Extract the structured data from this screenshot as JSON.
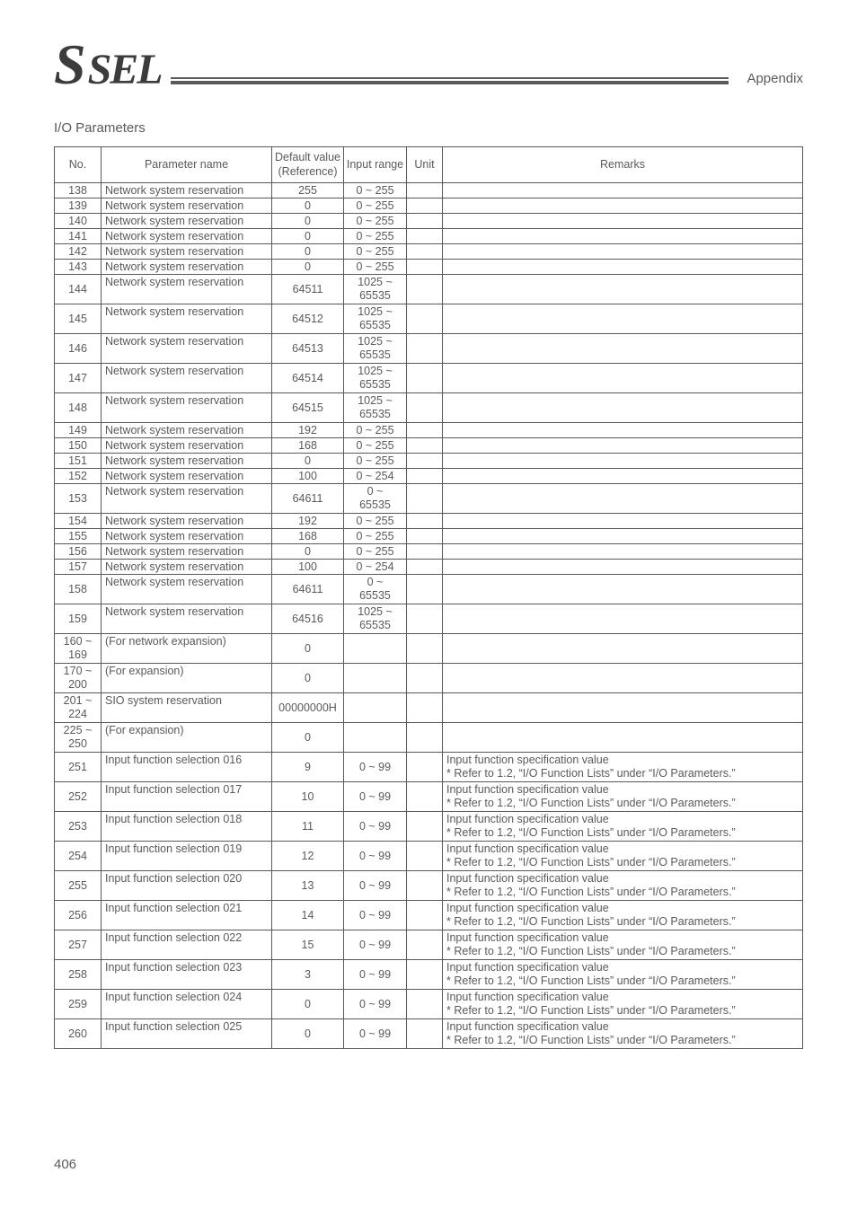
{
  "header": {
    "logo_s": "S",
    "logo_rest": "SEL",
    "appendix": "Appendix"
  },
  "section_title": "I/O Parameters",
  "columns": {
    "no": "No.",
    "name": "Parameter name",
    "def": "Default\nvalue\n(Reference)",
    "range": "Input\nrange",
    "unit": "Unit",
    "remarks": "Remarks"
  },
  "rows": [
    {
      "no": "138",
      "name": "Network system reservation",
      "def": "255",
      "range": "0 ~ 255",
      "unit": "",
      "remarks": ""
    },
    {
      "no": "139",
      "name": "Network system reservation",
      "def": "0",
      "range": "0 ~ 255",
      "unit": "",
      "remarks": ""
    },
    {
      "no": "140",
      "name": "Network system reservation",
      "def": "0",
      "range": "0 ~ 255",
      "unit": "",
      "remarks": ""
    },
    {
      "no": "141",
      "name": "Network system reservation",
      "def": "0",
      "range": "0 ~ 255",
      "unit": "",
      "remarks": ""
    },
    {
      "no": "142",
      "name": "Network system reservation",
      "def": "0",
      "range": "0 ~ 255",
      "unit": "",
      "remarks": ""
    },
    {
      "no": "143",
      "name": "Network system reservation",
      "def": "0",
      "range": "0 ~ 255",
      "unit": "",
      "remarks": ""
    },
    {
      "no": "144",
      "name": "Network system reservation",
      "def": "64511",
      "range": "1025 ~\n65535",
      "unit": "",
      "remarks": ""
    },
    {
      "no": "145",
      "name": "Network system reservation",
      "def": "64512",
      "range": "1025 ~\n65535",
      "unit": "",
      "remarks": ""
    },
    {
      "no": "146",
      "name": "Network system reservation",
      "def": "64513",
      "range": "1025 ~\n65535",
      "unit": "",
      "remarks": ""
    },
    {
      "no": "147",
      "name": "Network system reservation",
      "def": "64514",
      "range": "1025 ~\n65535",
      "unit": "",
      "remarks": ""
    },
    {
      "no": "148",
      "name": "Network system reservation",
      "def": "64515",
      "range": "1025 ~\n65535",
      "unit": "",
      "remarks": ""
    },
    {
      "no": "149",
      "name": "Network system reservation",
      "def": "192",
      "range": "0 ~ 255",
      "unit": "",
      "remarks": ""
    },
    {
      "no": "150",
      "name": "Network system reservation",
      "def": "168",
      "range": "0 ~ 255",
      "unit": "",
      "remarks": ""
    },
    {
      "no": "151",
      "name": "Network system reservation",
      "def": "0",
      "range": "0 ~ 255",
      "unit": "",
      "remarks": ""
    },
    {
      "no": "152",
      "name": "Network system reservation",
      "def": "100",
      "range": "0 ~ 254",
      "unit": "",
      "remarks": ""
    },
    {
      "no": "153",
      "name": "Network system reservation",
      "def": "64611",
      "range": "0 ~\n65535",
      "unit": "",
      "remarks": ""
    },
    {
      "no": "154",
      "name": "Network system reservation",
      "def": "192",
      "range": "0 ~ 255",
      "unit": "",
      "remarks": ""
    },
    {
      "no": "155",
      "name": "Network system reservation",
      "def": "168",
      "range": "0 ~ 255",
      "unit": "",
      "remarks": ""
    },
    {
      "no": "156",
      "name": "Network system reservation",
      "def": "0",
      "range": "0 ~ 255",
      "unit": "",
      "remarks": ""
    },
    {
      "no": "157",
      "name": "Network system reservation",
      "def": "100",
      "range": "0 ~ 254",
      "unit": "",
      "remarks": ""
    },
    {
      "no": "158",
      "name": "Network system reservation",
      "def": "64611",
      "range": "0 ~\n65535",
      "unit": "",
      "remarks": ""
    },
    {
      "no": "159",
      "name": "Network system reservation",
      "def": "64516",
      "range": "1025 ~\n65535",
      "unit": "",
      "remarks": ""
    },
    {
      "no": "160 ~\n169",
      "name": "(For network expansion)",
      "def": "0",
      "range": "",
      "unit": "",
      "remarks": ""
    },
    {
      "no": "170 ~\n200",
      "name": "(For expansion)",
      "def": "0",
      "range": "",
      "unit": "",
      "remarks": ""
    },
    {
      "no": "201 ~\n224",
      "name": "SIO system reservation",
      "def": "00000000H",
      "range": "",
      "unit": "",
      "remarks": ""
    },
    {
      "no": "225 ~\n250",
      "name": "(For expansion)",
      "def": "0",
      "range": "",
      "unit": "",
      "remarks": ""
    },
    {
      "no": "251",
      "name": "Input function selection 016",
      "def": "9",
      "range": "0 ~ 99",
      "unit": "",
      "remarks": "Input function specification value\n* Refer to 1.2, “I/O Function Lists” under “I/O Parameters.”"
    },
    {
      "no": "252",
      "name": "Input function selection 017",
      "def": "10",
      "range": "0 ~ 99",
      "unit": "",
      "remarks": "Input function specification value\n* Refer to 1.2, “I/O Function Lists” under “I/O Parameters.”"
    },
    {
      "no": "253",
      "name": "Input function selection 018",
      "def": "11",
      "range": "0 ~ 99",
      "unit": "",
      "remarks": "Input function specification value\n* Refer to 1.2, “I/O Function Lists” under “I/O Parameters.”"
    },
    {
      "no": "254",
      "name": "Input function selection 019",
      "def": "12",
      "range": "0 ~ 99",
      "unit": "",
      "remarks": "Input function specification value\n* Refer to 1.2, “I/O Function Lists” under “I/O Parameters.”"
    },
    {
      "no": "255",
      "name": "Input function selection 020",
      "def": "13",
      "range": "0 ~ 99",
      "unit": "",
      "remarks": "Input function specification value\n* Refer to 1.2, “I/O Function Lists” under “I/O Parameters.”"
    },
    {
      "no": "256",
      "name": "Input function selection 021",
      "def": "14",
      "range": "0 ~ 99",
      "unit": "",
      "remarks": "Input function specification value\n* Refer to 1.2, “I/O Function Lists” under “I/O Parameters.”"
    },
    {
      "no": "257",
      "name": "Input function selection 022",
      "def": "15",
      "range": "0 ~ 99",
      "unit": "",
      "remarks": "Input function specification value\n* Refer to 1.2, “I/O Function Lists” under “I/O Parameters.”"
    },
    {
      "no": "258",
      "name": "Input function selection 023",
      "def": "3",
      "range": "0 ~ 99",
      "unit": "",
      "remarks": "Input function specification value\n* Refer to 1.2, “I/O Function Lists” under “I/O Parameters.”"
    },
    {
      "no": "259",
      "name": "Input function selection 024",
      "def": "0",
      "range": "0 ~ 99",
      "unit": "",
      "remarks": "Input function specification value\n* Refer to 1.2, “I/O Function Lists” under “I/O Parameters.”"
    },
    {
      "no": "260",
      "name": "Input function selection 025",
      "def": "0",
      "range": "0 ~ 99",
      "unit": "",
      "remarks": "Input function specification value\n* Refer to 1.2, “I/O Function Lists” under “I/O Parameters.”"
    }
  ],
  "page_number": "406"
}
